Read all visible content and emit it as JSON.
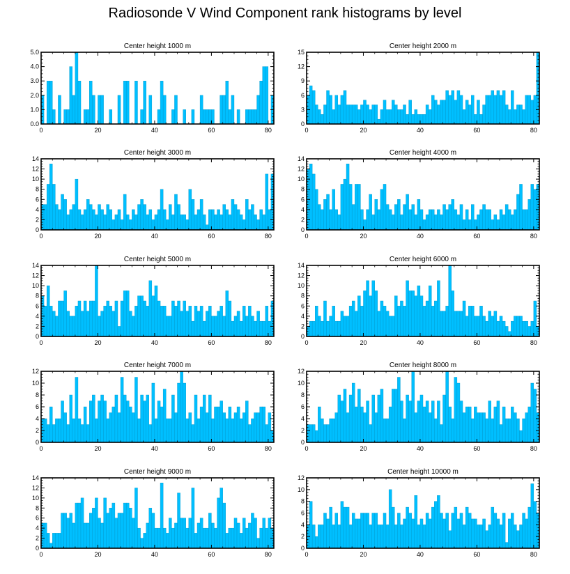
{
  "title": "Radiosonde V Wind Component rank histograms by level",
  "colors": {
    "bar": "#00bfff",
    "bar_edge": "#0096c8",
    "axis": "#000000"
  },
  "chart_data": [
    {
      "type": "bar",
      "title": "Center height 1000 m",
      "xlim": [
        0,
        82
      ],
      "ylim": [
        0,
        5
      ],
      "xticks": [
        0,
        20,
        40,
        60,
        80
      ],
      "yticks": [
        "0.0",
        "1.0",
        "2.0",
        "3.0",
        "4.0",
        "5.0"
      ],
      "values": [
        2,
        0,
        3,
        3,
        1,
        0,
        2,
        0,
        1,
        1,
        4,
        2,
        5,
        3,
        0,
        1,
        1,
        3,
        2,
        0,
        2,
        2,
        0,
        0,
        1,
        0,
        0,
        2,
        0,
        3,
        3,
        0,
        0,
        3,
        0,
        1,
        3,
        0,
        2,
        0,
        0,
        1,
        3,
        2,
        0,
        0,
        1,
        2,
        0,
        0,
        1,
        0,
        0,
        1,
        0,
        0,
        2,
        1,
        1,
        1,
        1,
        0,
        0,
        2,
        2,
        3,
        1,
        2,
        0,
        1,
        0,
        0,
        1,
        1,
        1,
        1,
        2,
        3,
        4,
        4,
        0,
        2
      ]
    },
    {
      "type": "bar",
      "title": "Center height 2000 m",
      "xlim": [
        0,
        82
      ],
      "ylim": [
        0,
        15
      ],
      "xticks": [
        0,
        20,
        40,
        60,
        80
      ],
      "yticks": [
        "0",
        "3",
        "6",
        "9",
        "12",
        "15"
      ],
      "values": [
        6,
        8,
        7,
        4,
        3,
        2,
        4,
        7,
        6,
        3,
        6,
        4,
        6,
        7,
        4,
        4,
        4,
        4,
        3,
        4,
        5,
        4,
        3,
        4,
        4,
        1,
        3,
        5,
        3,
        3,
        5,
        4,
        3,
        3,
        4,
        2,
        5,
        2,
        3,
        2,
        2,
        2,
        4,
        3,
        6,
        5,
        4,
        5,
        5,
        7,
        6,
        7,
        5,
        7,
        6,
        3,
        5,
        4,
        6,
        2,
        5,
        2,
        4,
        6,
        6,
        7,
        6,
        7,
        6,
        7,
        4,
        3,
        7,
        3,
        4,
        4,
        3,
        6,
        6,
        5,
        6,
        15
      ]
    },
    {
      "type": "bar",
      "title": "Center height 3000 m",
      "xlim": [
        0,
        82
      ],
      "ylim": [
        0,
        14
      ],
      "xticks": [
        0,
        20,
        40,
        60,
        80
      ],
      "yticks": [
        "0",
        "2",
        "4",
        "6",
        "8",
        "10",
        "12",
        "14"
      ],
      "values": [
        5,
        5,
        9,
        13,
        9,
        5,
        4,
        7,
        6,
        3,
        4,
        5,
        10,
        4,
        3,
        4,
        6,
        5,
        4,
        3,
        5,
        4,
        3,
        5,
        4,
        2,
        3,
        4,
        2,
        7,
        3,
        2,
        4,
        3,
        5,
        6,
        5,
        3,
        4,
        2,
        3,
        4,
        8,
        4,
        2,
        5,
        3,
        7,
        5,
        3,
        3,
        2,
        8,
        6,
        3,
        4,
        6,
        3,
        1,
        4,
        4,
        3,
        4,
        3,
        5,
        4,
        3,
        6,
        5,
        4,
        3,
        2,
        6,
        4,
        5,
        3,
        2,
        4,
        3,
        11,
        4,
        11
      ]
    },
    {
      "type": "bar",
      "title": "Center height 4000 m",
      "xlim": [
        0,
        82
      ],
      "ylim": [
        0,
        14
      ],
      "xticks": [
        0,
        20,
        40,
        60,
        80
      ],
      "yticks": [
        "0",
        "2",
        "4",
        "6",
        "8",
        "10",
        "12",
        "14"
      ],
      "values": [
        12,
        13,
        11,
        8,
        5,
        4,
        6,
        7,
        4,
        8,
        4,
        3,
        9,
        10,
        13,
        9,
        5,
        9,
        9,
        4,
        2,
        4,
        7,
        3,
        6,
        4,
        8,
        9,
        5,
        4,
        3,
        5,
        6,
        3,
        5,
        7,
        4,
        5,
        3,
        6,
        4,
        2,
        3,
        4,
        4,
        3,
        4,
        3,
        5,
        4,
        5,
        6,
        4,
        3,
        5,
        2,
        4,
        2,
        5,
        2,
        3,
        4,
        5,
        4,
        4,
        2,
        3,
        2,
        4,
        3,
        5,
        4,
        3,
        4,
        7,
        9,
        4,
        4,
        6,
        9,
        8,
        9
      ]
    },
    {
      "type": "bar",
      "title": "Center height 5000 m",
      "xlim": [
        0,
        82
      ],
      "ylim": [
        0,
        14
      ],
      "xticks": [
        0,
        20,
        40,
        60,
        80
      ],
      "yticks": [
        "0",
        "2",
        "4",
        "6",
        "8",
        "10",
        "12",
        "14"
      ],
      "values": [
        8,
        6,
        10,
        6,
        5,
        4,
        7,
        7,
        9,
        5,
        4,
        4,
        6,
        7,
        5,
        7,
        5,
        7,
        7,
        14,
        4,
        5,
        6,
        7,
        6,
        5,
        7,
        2,
        7,
        9,
        9,
        5,
        4,
        6,
        8,
        8,
        7,
        6,
        11,
        8,
        10,
        7,
        6,
        6,
        4,
        4,
        7,
        6,
        7,
        5,
        7,
        5,
        6,
        3,
        6,
        5,
        6,
        3,
        5,
        6,
        4,
        4,
        5,
        6,
        4,
        9,
        7,
        3,
        4,
        5,
        3,
        6,
        4,
        6,
        4,
        3,
        5,
        3,
        3,
        6,
        3,
        7
      ]
    },
    {
      "type": "bar",
      "title": "Center height 6000 m",
      "xlim": [
        0,
        82
      ],
      "ylim": [
        0,
        14
      ],
      "xticks": [
        0,
        20,
        40,
        60,
        80
      ],
      "yticks": [
        "0",
        "2",
        "4",
        "6",
        "8",
        "10",
        "12",
        "14"
      ],
      "values": [
        2,
        3,
        3,
        6,
        4,
        3,
        7,
        3,
        4,
        6,
        3,
        3,
        5,
        4,
        4,
        6,
        7,
        5,
        8,
        6,
        9,
        11,
        8,
        11,
        9,
        5,
        7,
        6,
        5,
        4,
        4,
        8,
        6,
        7,
        6,
        11,
        9,
        9,
        8,
        10,
        8,
        6,
        7,
        10,
        6,
        7,
        11,
        5,
        5,
        6,
        14,
        9,
        5,
        5,
        5,
        7,
        4,
        6,
        6,
        4,
        4,
        6,
        4,
        3,
        5,
        4,
        5,
        3,
        4,
        3,
        2,
        1,
        3,
        4,
        4,
        4,
        3,
        3,
        2,
        3,
        7,
        2
      ]
    },
    {
      "type": "bar",
      "title": "Center height 7000 m",
      "xlim": [
        0,
        82
      ],
      "ylim": [
        0,
        12
      ],
      "xticks": [
        0,
        20,
        40,
        60,
        80
      ],
      "yticks": [
        "0",
        "2",
        "4",
        "6",
        "8",
        "10",
        "12"
      ],
      "values": [
        4,
        4,
        3,
        6,
        3,
        4,
        4,
        7,
        5,
        3,
        8,
        4,
        11,
        4,
        3,
        6,
        3,
        7,
        8,
        4,
        7,
        8,
        7,
        4,
        5,
        6,
        8,
        5,
        11,
        8,
        7,
        6,
        5,
        11,
        4,
        8,
        7,
        8,
        3,
        10,
        4,
        7,
        6,
        9,
        4,
        4,
        8,
        5,
        10,
        12,
        10,
        4,
        5,
        3,
        8,
        4,
        6,
        8,
        5,
        8,
        4,
        6,
        6,
        7,
        5,
        4,
        6,
        4,
        5,
        6,
        4,
        5,
        7,
        3,
        4,
        5,
        5,
        6,
        6,
        3,
        5,
        2
      ]
    },
    {
      "type": "bar",
      "title": "Center height 8000 m",
      "xlim": [
        0,
        82
      ],
      "ylim": [
        0,
        12
      ],
      "xticks": [
        0,
        20,
        40,
        60,
        80
      ],
      "yticks": [
        "0",
        "2",
        "4",
        "6",
        "8",
        "10",
        "12"
      ],
      "values": [
        3,
        3,
        3,
        2,
        6,
        4,
        3,
        3,
        4,
        4,
        5,
        8,
        7,
        9,
        5,
        8,
        10,
        6,
        9,
        6,
        5,
        7,
        3,
        8,
        5,
        8,
        9,
        4,
        4,
        6,
        9,
        9,
        11,
        7,
        4,
        8,
        7,
        12,
        5,
        7,
        8,
        6,
        7,
        5,
        7,
        4,
        7,
        3,
        8,
        12,
        6,
        4,
        11,
        10,
        7,
        5,
        6,
        6,
        4,
        6,
        5,
        5,
        5,
        4,
        7,
        4,
        6,
        7,
        3,
        6,
        4,
        4,
        6,
        5,
        4,
        2,
        4,
        5,
        6,
        10,
        9,
        5
      ]
    },
    {
      "type": "bar",
      "title": "Center height 9000 m",
      "xlim": [
        0,
        82
      ],
      "ylim": [
        0,
        14
      ],
      "xticks": [
        0,
        20,
        40,
        60,
        80
      ],
      "yticks": [
        "0",
        "2",
        "4",
        "6",
        "8",
        "10",
        "12",
        "14"
      ],
      "values": [
        5,
        5,
        3,
        1,
        3,
        3,
        3,
        7,
        7,
        6,
        7,
        5,
        9,
        9,
        10,
        5,
        5,
        7,
        8,
        10,
        6,
        5,
        10,
        7,
        8,
        9,
        6,
        7,
        7,
        9,
        9,
        8,
        6,
        12,
        4,
        2,
        3,
        5,
        8,
        7,
        4,
        4,
        13,
        4,
        3,
        6,
        4,
        5,
        11,
        6,
        6,
        4,
        6,
        12,
        3,
        5,
        6,
        4,
        4,
        7,
        5,
        4,
        10,
        12,
        9,
        3,
        4,
        4,
        6,
        5,
        3,
        6,
        4,
        5,
        7,
        6,
        2,
        4,
        6,
        4,
        6,
        4
      ]
    },
    {
      "type": "bar",
      "title": "Center height 10000 m",
      "xlim": [
        0,
        82
      ],
      "ylim": [
        0,
        12
      ],
      "xticks": [
        0,
        20,
        40,
        60,
        80
      ],
      "yticks": [
        "0",
        "2",
        "4",
        "6",
        "8",
        "10",
        "12"
      ],
      "values": [
        4,
        8,
        4,
        2,
        4,
        4,
        6,
        5,
        7,
        4,
        6,
        4,
        8,
        7,
        7,
        4,
        6,
        5,
        5,
        6,
        6,
        6,
        4,
        6,
        6,
        4,
        4,
        6,
        4,
        10,
        7,
        4,
        6,
        4,
        5,
        7,
        6,
        5,
        9,
        4,
        5,
        4,
        6,
        5,
        7,
        8,
        9,
        6,
        5,
        6,
        3,
        6,
        7,
        5,
        6,
        4,
        7,
        6,
        5,
        5,
        4,
        4,
        5,
        3,
        4,
        7,
        6,
        5,
        4,
        6,
        1,
        5,
        6,
        4,
        3,
        4,
        6,
        5,
        7,
        11,
        8,
        6
      ]
    }
  ]
}
